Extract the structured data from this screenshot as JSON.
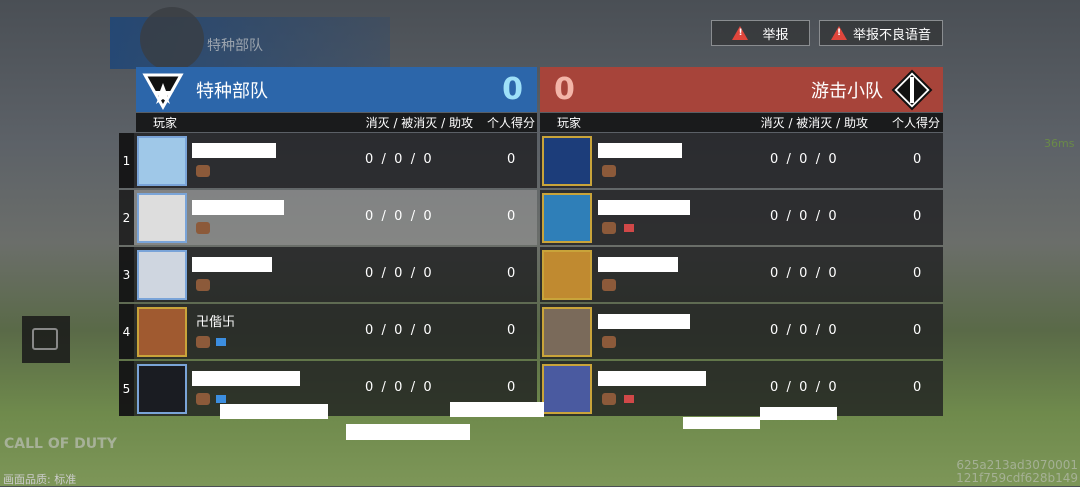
{
  "top_banner": {
    "team": "特种部队"
  },
  "buttons": {
    "report": "举报",
    "report_voice": "举报不良语音"
  },
  "ping": "36ms",
  "left_team": {
    "name": "特种部队",
    "score": "0",
    "color": "#2c66aa"
  },
  "right_team": {
    "name": "游击小队",
    "score": "0",
    "color": "#a7443a"
  },
  "columns": {
    "player": "玩家",
    "kda": "消灭 / 被消灭 / 助攻",
    "score": "个人得分"
  },
  "left_players": [
    {
      "rank": "1",
      "name": "",
      "kda": "0  /  0  /  0",
      "score": "0"
    },
    {
      "rank": "2",
      "name": "",
      "kda": "0  /  0  /  0",
      "score": "0"
    },
    {
      "rank": "3",
      "name": "",
      "kda": "0  /  0  /  0",
      "score": "0"
    },
    {
      "rank": "4",
      "name": "卍偕卐",
      "kda": "0  /  0  /  0",
      "score": "0"
    },
    {
      "rank": "5",
      "name": "",
      "kda": "0  /  0  /  0",
      "score": "0"
    }
  ],
  "right_players": [
    {
      "name": "",
      "kda": "0  /  0  /  0",
      "score": "0"
    },
    {
      "name": "",
      "kda": "0  /  0  /  0",
      "score": "0"
    },
    {
      "name": "",
      "kda": "0  /  0  /  0",
      "score": "0"
    },
    {
      "name": "",
      "kda": "0  /  0  /  0",
      "score": "0"
    },
    {
      "name": "",
      "kda": "0  /  0  /  0",
      "score": "0"
    }
  ],
  "footer": {
    "logo": "CALL OF DUTY",
    "quality": "画面品质: 标准",
    "id_line1": "625a213ad3070001",
    "id_line2": "121f759cdf628b149"
  }
}
